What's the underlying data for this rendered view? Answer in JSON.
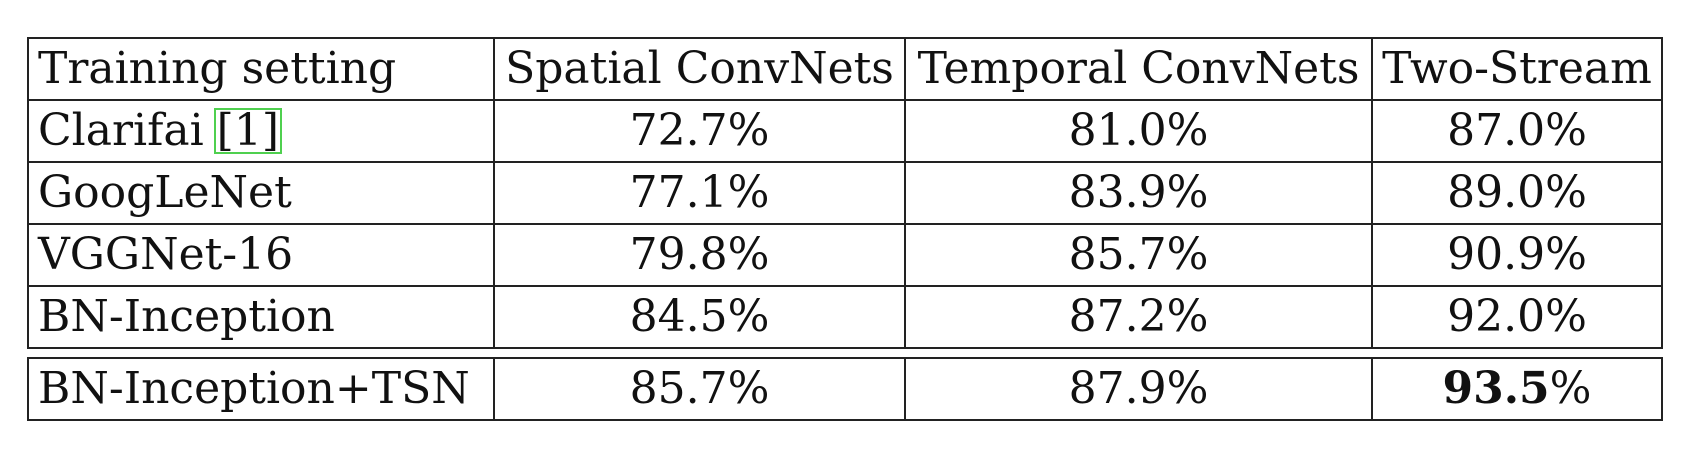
{
  "table": {
    "columns": [
      "Training setting",
      "Spatial ConvNets",
      "Temporal ConvNets",
      "Two-Stream"
    ],
    "rows": [
      {
        "setting": "Clarifai",
        "ref": "[1]",
        "spatial": "72.7%",
        "temporal": "81.0%",
        "two_stream": "87.0%"
      },
      {
        "setting": "GoogLeNet",
        "spatial": "77.1%",
        "temporal": "83.9%",
        "two_stream": "89.0%"
      },
      {
        "setting": "VGGNet-16",
        "spatial": "79.8%",
        "temporal": "85.7%",
        "two_stream": "90.9%"
      },
      {
        "setting": "BN-Inception",
        "spatial": "84.5%",
        "temporal": "87.2%",
        "two_stream": "92.0%"
      }
    ],
    "final_row": {
      "setting": "BN-Inception+TSN",
      "spatial": "85.7%",
      "temporal": "87.9%",
      "two_stream_bold": "93.5",
      "two_stream_suffix": "%"
    },
    "colors": {
      "reference_box": "#4fd04f",
      "rule": "#222222"
    }
  }
}
